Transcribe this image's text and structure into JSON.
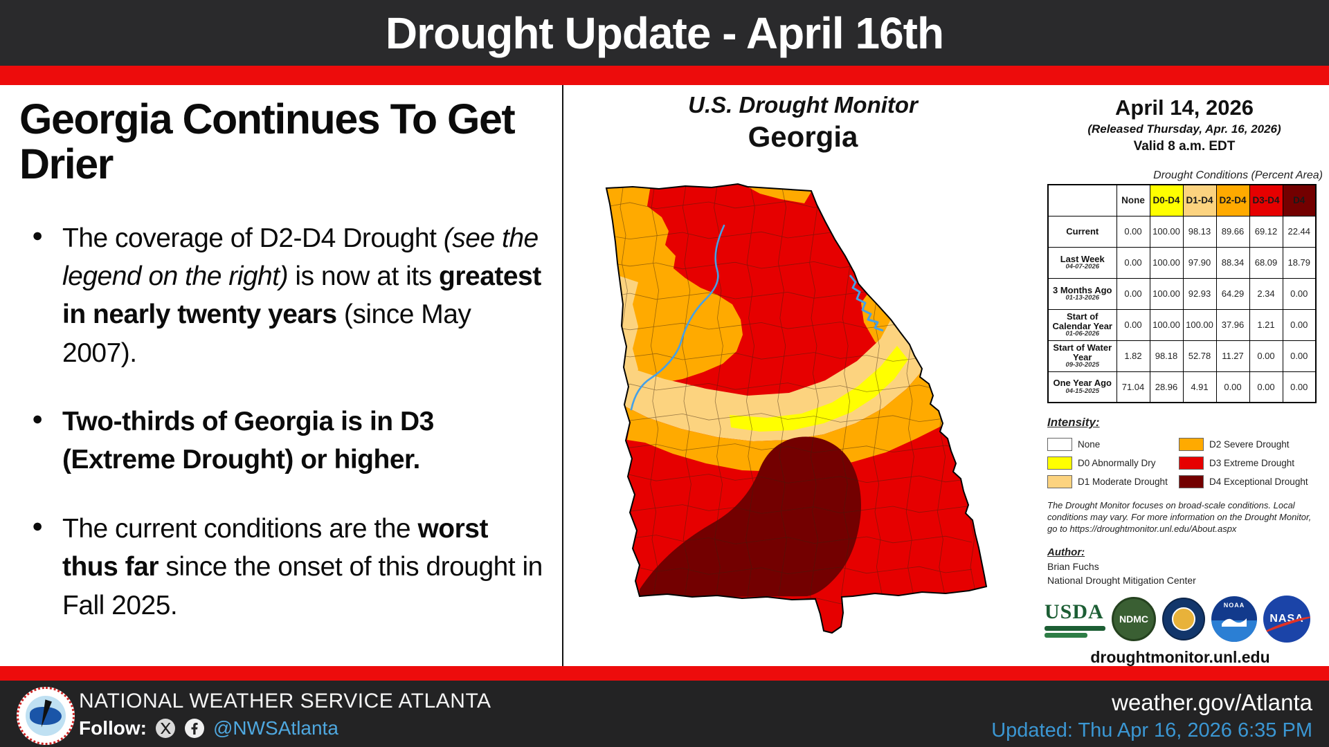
{
  "banner": {
    "title": "Drought Update - April 16th"
  },
  "left_panel": {
    "heading": "Georgia Continues To Get Drier",
    "bullets": [
      {
        "segments": [
          {
            "t": "The coverage of D2-D4 Drought ",
            "s": "r"
          },
          {
            "t": "(see the legend on the right)",
            "s": "i"
          },
          {
            "t": " is now at its ",
            "s": "r"
          },
          {
            "t": "greatest in nearly twenty years",
            "s": "b"
          },
          {
            "t": " (since May 2007).",
            "s": "r"
          }
        ]
      },
      {
        "segments": [
          {
            "t": "Two-thirds of Georgia is in D3 (Extreme Drought) or higher.",
            "s": "b"
          }
        ]
      },
      {
        "segments": [
          {
            "t": "The current conditions are the ",
            "s": "r"
          },
          {
            "t": "worst thus far",
            "s": "b"
          },
          {
            "t": " since the onset of this drought in Fall 2025.",
            "s": "r"
          }
        ]
      }
    ]
  },
  "map_panel": {
    "title": "U.S. Drought Monitor",
    "subtitle": "Georgia"
  },
  "info_panel": {
    "date_title": "April 14, 2026",
    "released": "(Released Thursday, Apr. 16, 2026)",
    "valid": "Valid 8 a.m. EDT",
    "table_caption": "Drought Conditions (Percent Area)",
    "table": {
      "columns": [
        {
          "label": "None",
          "bg": "#FFFFFF"
        },
        {
          "label": "D0-D4",
          "bg": "#FFFF00"
        },
        {
          "label": "D1-D4",
          "bg": "#FCD37F"
        },
        {
          "label": "D2-D4",
          "bg": "#FFAA00"
        },
        {
          "label": "D3-D4",
          "bg": "#E60000"
        },
        {
          "label": "D4",
          "bg": "#730000"
        }
      ],
      "rows": [
        {
          "label": "Current",
          "date": "",
          "values": [
            "0.00",
            "100.00",
            "98.13",
            "89.66",
            "69.12",
            "22.44"
          ]
        },
        {
          "label": "Last Week",
          "date": "04-07-2026",
          "values": [
            "0.00",
            "100.00",
            "97.90",
            "88.34",
            "68.09",
            "18.79"
          ]
        },
        {
          "label": "3 Months Ago",
          "date": "01-13-2026",
          "values": [
            "0.00",
            "100.00",
            "92.93",
            "64.29",
            "2.34",
            "0.00"
          ]
        },
        {
          "label": "Start of Calendar Year",
          "date": "01-06-2026",
          "values": [
            "0.00",
            "100.00",
            "100.00",
            "37.96",
            "1.21",
            "0.00"
          ]
        },
        {
          "label": "Start of Water Year",
          "date": "09-30-2025",
          "values": [
            "1.82",
            "98.18",
            "52.78",
            "11.27",
            "0.00",
            "0.00"
          ]
        },
        {
          "label": "One Year Ago",
          "date": "04-15-2025",
          "values": [
            "71.04",
            "28.96",
            "4.91",
            "0.00",
            "0.00",
            "0.00"
          ]
        }
      ]
    },
    "intensity_label": "Intensity:",
    "legend": [
      {
        "label": "None",
        "color": "#FFFFFF"
      },
      {
        "label": "D0 Abnormally Dry",
        "color": "#FFFF00"
      },
      {
        "label": "D1 Moderate Drought",
        "color": "#FCD37F"
      },
      {
        "label": "D2 Severe Drought",
        "color": "#FFAA00"
      },
      {
        "label": "D3 Extreme Drought",
        "color": "#E60000"
      },
      {
        "label": "D4 Exceptional Drought",
        "color": "#730000"
      }
    ],
    "disclaimer": "The Drought Monitor focuses on broad-scale conditions. Local conditions may vary. For more information on the Drought Monitor, go to https://droughtmonitor.unl.edu/About.aspx",
    "author_label": "Author:",
    "author_name": "Brian Fuchs",
    "author_org": "National Drought Mitigation Center",
    "logos": [
      "USDA",
      "NDMC",
      "DOC",
      "NOAA",
      "NASA"
    ],
    "website": "droughtmonitor.unl.edu"
  },
  "footer": {
    "org": "NATIONAL WEATHER SERVICE ATLANTA",
    "follow_label": "Follow:",
    "handle": "@NWSAtlanta",
    "site": "weather.gov/Atlanta",
    "updated": "Updated: Thu Apr 16, 2026 6:35 PM"
  },
  "colors": {
    "banner_bg": "#2A2A2C",
    "stripe_red": "#ED0C0C",
    "footer_bg": "#232324",
    "link_blue": "#4FA8DF",
    "updated_blue": "#3B97D3",
    "d0": "#FFFF00",
    "d1": "#FCD37F",
    "d2": "#FFAA00",
    "d3": "#E60000",
    "d4": "#730000",
    "none": "#FFFFFF",
    "river_blue": "#45A0E6"
  }
}
